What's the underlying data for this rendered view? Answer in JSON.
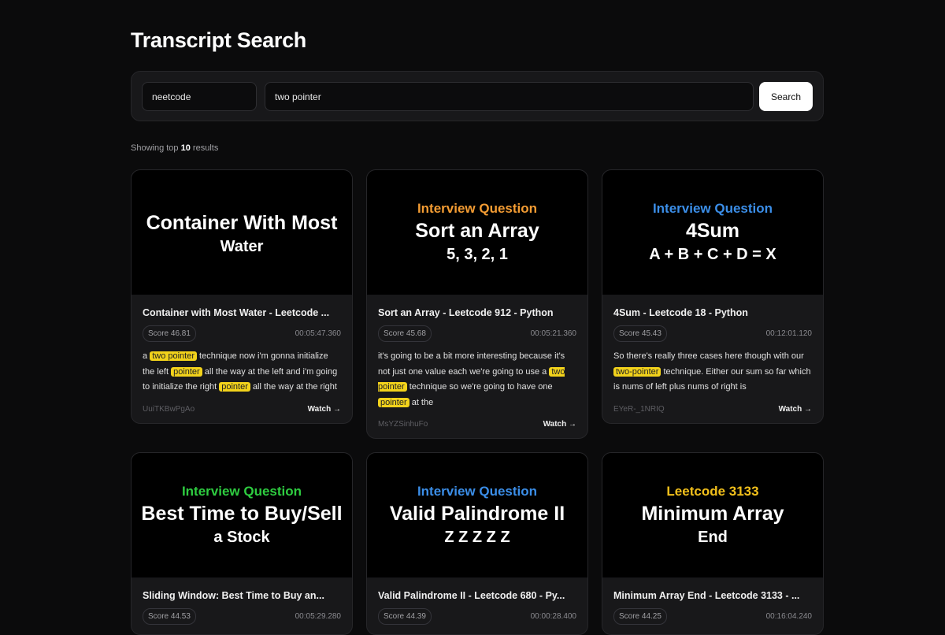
{
  "header": {
    "title": "Transcript Search"
  },
  "search": {
    "channel_value": "neetcode",
    "query_value": "two pointer",
    "button_label": "Search"
  },
  "results_summary": {
    "prefix": "Showing top",
    "count": "10",
    "suffix": "results"
  },
  "watch_label": "Watch →",
  "colors": {
    "highlight": "#f2d21b",
    "background": "#0b0b0c",
    "card": "#18181a"
  },
  "results": [
    {
      "thumb": [
        "",
        "Container With Most",
        "Water"
      ],
      "thumb_color": "#ffffff",
      "title": "Container with Most Water - Leetcode ...",
      "score": "Score 46.81",
      "time": "00:05:47.360",
      "snippet": [
        {
          "t": "a "
        },
        {
          "h": "two pointer"
        },
        {
          "t": " technique now i'm gonna initialize the left "
        },
        {
          "h": "pointer"
        },
        {
          "t": " all the way at the left and i'm going to initialize the right "
        },
        {
          "h": "pointer"
        },
        {
          "t": " all the way at the right"
        }
      ],
      "video_id": "UuiTKBwPgAo"
    },
    {
      "thumb": [
        "Interview Question",
        "Sort an Array",
        "5, 3, 2, 1"
      ],
      "thumb_color": "#f39c33",
      "title": "Sort an Array - Leetcode 912 - Python",
      "score": "Score 45.68",
      "time": "00:05:21.360",
      "snippet": [
        {
          "t": "it's going to be a bit more interesting because it's not just one value each we're going to use a "
        },
        {
          "h": "two pointer"
        },
        {
          "t": " technique so we're going to have one "
        },
        {
          "h": "pointer"
        },
        {
          "t": " at the"
        }
      ],
      "video_id": "MsYZSinhuFo"
    },
    {
      "thumb": [
        "Interview Question",
        "4Sum",
        "A + B + C + D = X"
      ],
      "thumb_color": "#3b8ee8",
      "title": "4Sum - Leetcode 18 - Python",
      "score": "Score 45.43",
      "time": "00:12:01.120",
      "snippet": [
        {
          "t": "So there's really three cases here though with our "
        },
        {
          "h": "two-pointer"
        },
        {
          "t": " technique. Either our sum so far which is nums of left plus nums of right is"
        }
      ],
      "video_id": "EYeR-_1NRIQ"
    },
    {
      "thumb": [
        "Interview Question",
        "Best Time to Buy/Sell",
        "a Stock"
      ],
      "thumb_color": "#2ecc40",
      "title": "Sliding Window:   Best Time to Buy an...",
      "score": "Score 44.53",
      "time": "00:05:29.280",
      "snippet": [],
      "video_id": ""
    },
    {
      "thumb": [
        "Interview Question",
        "Valid Palindrome II",
        "Z Z Z Z Z"
      ],
      "thumb_color": "#3b8ee8",
      "title": "Valid Palindrome II - Leetcode 680 - Py...",
      "score": "Score 44.39",
      "time": "00:00:28.400",
      "snippet": [],
      "video_id": ""
    },
    {
      "thumb": [
        "Leetcode 3133",
        "Minimum Array",
        "End"
      ],
      "thumb_color": "#f2c01b",
      "title": "Minimum Array End - Leetcode 3133 - ...",
      "score": "Score 44.25",
      "time": "00:16:04.240",
      "snippet": [],
      "video_id": ""
    }
  ]
}
